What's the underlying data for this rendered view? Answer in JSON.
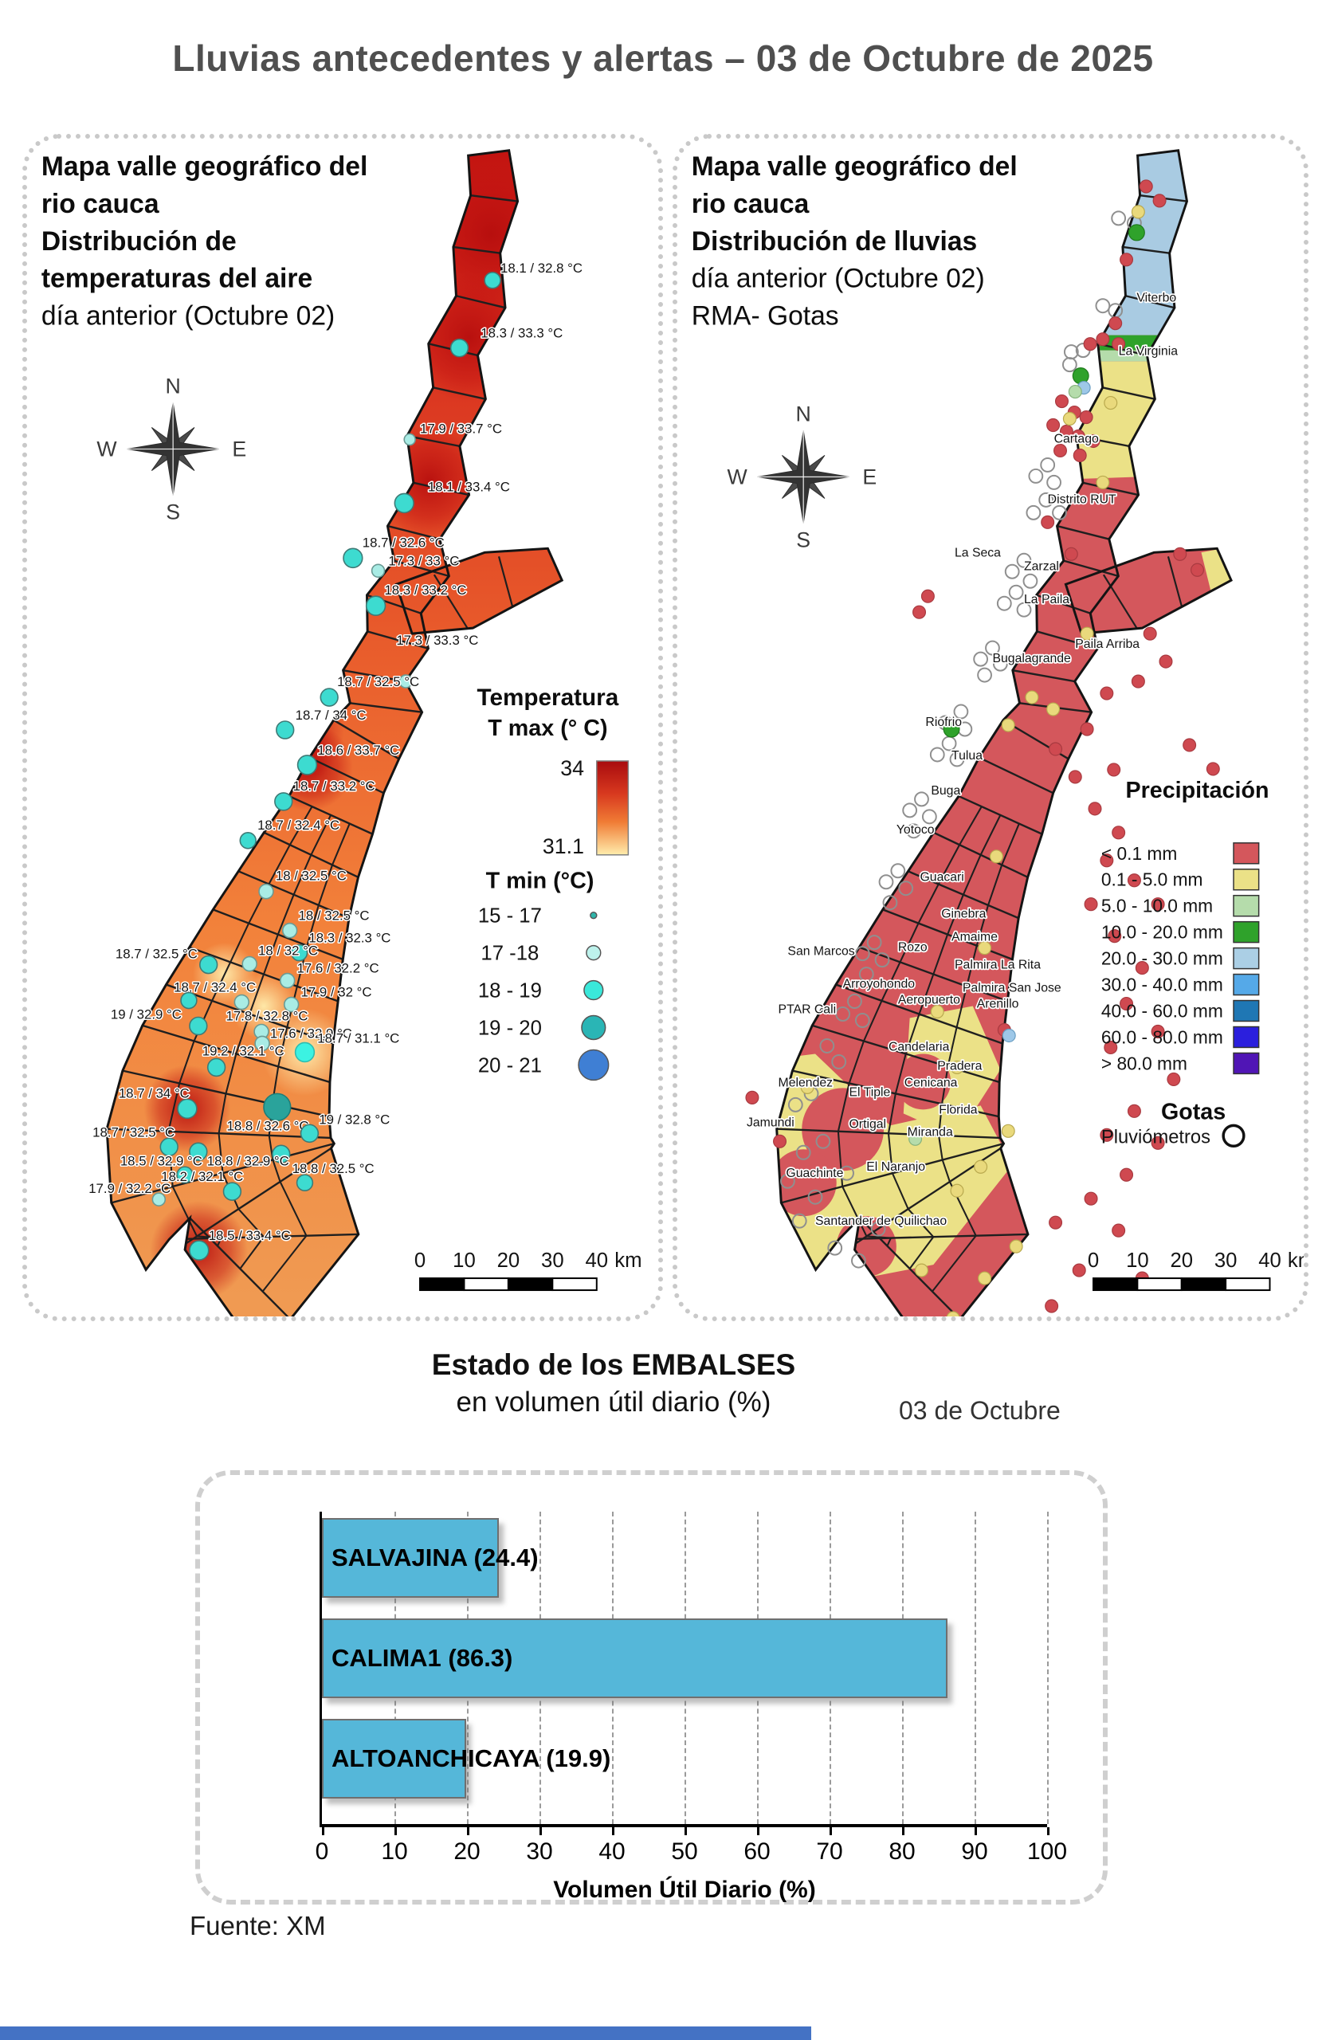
{
  "title": "Lluvias antecedentes y alertas – 03 de Octubre de 2025",
  "source": "Fuente: XM",
  "compass": {
    "north": "N",
    "south": "S",
    "east": "E",
    "west": "W"
  },
  "scalebar": {
    "ticks": [
      "0",
      "10",
      "20",
      "30",
      "40"
    ],
    "unit": "km"
  },
  "colors": {
    "title": "#4f4f4f",
    "rain_base": "#d4575c",
    "rain_yellow": "#ebe187",
    "rain_blue_zone": "#a9cbe2",
    "rain_green": "#2fa22b",
    "rain_lightgreen": "#b5dcab",
    "bottom_bar": "#4472c4"
  },
  "temp_map": {
    "title_lines": [
      "Mapa valle geográfico del",
      "rio cauca",
      "Distribución de",
      "temperaturas del aire",
      "día anterior (Octubre 02)"
    ],
    "legend_title1": "Temperatura",
    "legend_title2": "T max (° C)",
    "tmax_top_label": "34",
    "tmax_bottom_label": "31.1",
    "tmin_title": "T min (°C)",
    "tmin_classes": [
      [
        "15 - 17",
        4,
        "#2fb5aa"
      ],
      [
        "17 -18",
        9,
        "#bdf2ec"
      ],
      [
        "18 - 19",
        12,
        "#3ae8da"
      ],
      [
        "19 - 20",
        15,
        "#2ab5b5"
      ],
      [
        "20 - 21",
        19,
        "#3f7fd4"
      ]
    ],
    "stations": [
      [
        590,
        178,
        10,
        0,
        "18.1 / 32.8 °C",
        600,
        168
      ],
      [
        548,
        263,
        11,
        0,
        "18.3 / 33.3 °C",
        575,
        250
      ],
      [
        485,
        378,
        7,
        1,
        "17.9 / 33.7 °C",
        498,
        370
      ],
      [
        478,
        458,
        12,
        0,
        "18.1 / 33.4 °C",
        508,
        443
      ],
      [
        413,
        527,
        12,
        0,
        "18.7 / 32.6 °C",
        425,
        513
      ],
      [
        445,
        543,
        8,
        1,
        "17.3 / 33 °C",
        458,
        536
      ],
      [
        442,
        587,
        12,
        0,
        "18.3 / 33.2 °C",
        453,
        573
      ],
      [
        480,
        682,
        8,
        1,
        "17.3 / 33.3 °C",
        468,
        636
      ],
      [
        383,
        702,
        11,
        0,
        "18.7 / 32.5 °C",
        393,
        688
      ],
      [
        327,
        743,
        11,
        0,
        "18.7 / 34 °C",
        340,
        730
      ],
      [
        355,
        787,
        12,
        0,
        "18.6 / 33.7 °C",
        368,
        774
      ],
      [
        325,
        833,
        11,
        0,
        "18.7 / 33.2 °C",
        337,
        819
      ],
      [
        280,
        882,
        10,
        0,
        "18.7 / 32.4 °C",
        292,
        868
      ],
      [
        303,
        946,
        9,
        1,
        "18 / 32.5 °C",
        315,
        932
      ],
      [
        333,
        995,
        9,
        1,
        "18 / 32.5 °C",
        344,
        982
      ],
      [
        345,
        1023,
        10,
        0,
        "18.3 / 32.3 °C",
        357,
        1010
      ],
      [
        230,
        1038,
        11,
        0,
        "18.7 / 32.5 °C",
        112,
        1030
      ],
      [
        282,
        1037,
        9,
        1,
        "18 / 32 °C",
        293,
        1026
      ],
      [
        330,
        1058,
        9,
        1,
        "17.6 / 32.2 °C",
        342,
        1048
      ],
      [
        272,
        1085,
        9,
        1,
        "18.7 / 32.4 °C",
        186,
        1072
      ],
      [
        205,
        1083,
        10,
        0,
        "",
        0,
        0
      ],
      [
        335,
        1088,
        9,
        1,
        "17.9 / 32 °C",
        347,
        1078
      ],
      [
        217,
        1115,
        11,
        0,
        "19 / 32.9 °C",
        106,
        1106
      ],
      [
        297,
        1122,
        9,
        1,
        "17.8 / 32.8 °C",
        252,
        1108
      ],
      [
        298,
        1137,
        9,
        1,
        "17.6 / 32.9 °C",
        308,
        1130
      ],
      [
        352,
        1148,
        12,
        3,
        "18.7 / 31.1 °C",
        368,
        1136
      ],
      [
        240,
        1167,
        11,
        0,
        "19.2 / 32.1 °C",
        222,
        1152
      ],
      [
        317,
        1217,
        17,
        2,
        "18.8 / 32.6 °C",
        253,
        1246
      ],
      [
        203,
        1219,
        12,
        0,
        "18.7 / 34 °C",
        116,
        1205
      ],
      [
        180,
        1267,
        11,
        0,
        "18.7 / 32.5 °C",
        83,
        1254
      ],
      [
        217,
        1273,
        11,
        0,
        "",
        0,
        0
      ],
      [
        358,
        1250,
        11,
        0,
        "19 / 32.8 °C",
        370,
        1238
      ],
      [
        200,
        1302,
        10,
        0,
        "18.5 / 32.9 °C",
        118,
        1290
      ],
      [
        322,
        1276,
        11,
        0,
        "18.8 / 32.9 °C",
        228,
        1290
      ],
      [
        352,
        1312,
        10,
        0,
        "18.8 / 32.5 °C",
        336,
        1300
      ],
      [
        260,
        1323,
        11,
        0,
        "18.2 / 32.1 °C",
        170,
        1310
      ],
      [
        167,
        1333,
        8,
        1,
        "17.9 / 32.2 °C",
        78,
        1325
      ],
      [
        218,
        1397,
        12,
        0,
        "18.5 / 33.4 °C",
        230,
        1384
      ]
    ]
  },
  "rain_map": {
    "title_lines": [
      "Mapa valle geográfico del",
      "rio cauca",
      "Distribución de lluvias",
      "día anterior (Octubre 02)",
      "RMA- Gotas"
    ],
    "legend_title": "Precipitación",
    "classes": [
      [
        "< 0.1 mm",
        "#d4575c"
      ],
      [
        "0.1 - 5.0 mm",
        "#ebe187"
      ],
      [
        "5.0 - 10.0 mm",
        "#b5dcab"
      ],
      [
        "10.0 - 20.0 mm",
        "#2fa22b"
      ],
      [
        "20.0 - 30.0 mm",
        "#abcfe5"
      ],
      [
        "30.0 - 40.0 mm",
        "#55a9e8"
      ],
      [
        "40.0 - 60.0 mm",
        "#1f77b4"
      ],
      [
        "60.0 - 80.0 mm",
        "#2b1fdd"
      ],
      [
        "> 80.0 mm",
        "#5015b5"
      ]
    ],
    "gotas_title": "Gotas",
    "gotas_label": "Pluviómetros",
    "places": [
      [
        "Viterbo",
        583,
        205
      ],
      [
        "La Virginia",
        560,
        272
      ],
      [
        "Cartago",
        478,
        382
      ],
      [
        "Distrito RUT",
        470,
        458
      ],
      [
        "La Seca",
        352,
        525
      ],
      [
        "Zarzal",
        440,
        542
      ],
      [
        "La Paila",
        440,
        584
      ],
      [
        "Paila Arriba",
        505,
        640
      ],
      [
        "Bugalagrande",
        400,
        658
      ],
      [
        "Riofrio",
        315,
        738
      ],
      [
        "Tulua",
        348,
        780
      ],
      [
        "Buga",
        322,
        824
      ],
      [
        "Yotoco",
        278,
        873
      ],
      [
        "Guacari",
        308,
        933
      ],
      [
        "Ginebra",
        335,
        979
      ],
      [
        "Amaime",
        348,
        1008
      ],
      [
        "Rozo",
        280,
        1021
      ],
      [
        "San Marcos",
        140,
        1026
      ],
      [
        "Palmira La Rita",
        352,
        1043
      ],
      [
        "Arroyohondo",
        210,
        1067
      ],
      [
        "Palmira San Jose",
        362,
        1072
      ],
      [
        "Aeropuerto",
        280,
        1087
      ],
      [
        "Arenillo",
        380,
        1092
      ],
      [
        "PTAR Cali",
        128,
        1099
      ],
      [
        "Candelaria",
        268,
        1146
      ],
      [
        "Pradera",
        330,
        1170
      ],
      [
        "Melendez",
        128,
        1191
      ],
      [
        "Cenicana",
        288,
        1191
      ],
      [
        "El Tiple",
        218,
        1203
      ],
      [
        "Florida",
        332,
        1225
      ],
      [
        "Jamundi",
        88,
        1241
      ],
      [
        "Ortigal",
        218,
        1243
      ],
      [
        "Miranda",
        292,
        1253
      ],
      [
        "Guachinte",
        138,
        1305
      ],
      [
        "El Naranjo",
        240,
        1297
      ],
      [
        "Santander de Quilichao",
        175,
        1365
      ]
    ],
    "dots": {
      "open": [
        [
          560,
          100
        ],
        [
          580,
          106
        ],
        [
          540,
          210
        ],
        [
          556,
          216
        ],
        [
          500,
          268
        ],
        [
          515,
          266
        ],
        [
          498,
          284
        ],
        [
          470,
          410
        ],
        [
          455,
          424
        ],
        [
          478,
          432
        ],
        [
          468,
          454
        ],
        [
          452,
          470
        ],
        [
          485,
          470
        ],
        [
          440,
          530
        ],
        [
          425,
          544
        ],
        [
          448,
          556
        ],
        [
          430,
          570
        ],
        [
          415,
          584
        ],
        [
          440,
          592
        ],
        [
          400,
          640
        ],
        [
          385,
          654
        ],
        [
          410,
          660
        ],
        [
          390,
          674
        ],
        [
          360,
          720
        ],
        [
          340,
          734
        ],
        [
          365,
          742
        ],
        [
          345,
          760
        ],
        [
          330,
          774
        ],
        [
          355,
          780
        ],
        [
          310,
          830
        ],
        [
          295,
          844
        ],
        [
          320,
          852
        ],
        [
          300,
          870
        ],
        [
          280,
          920
        ],
        [
          265,
          934
        ],
        [
          290,
          942
        ],
        [
          270,
          960
        ],
        [
          250,
          1010
        ],
        [
          235,
          1024
        ],
        [
          260,
          1032
        ],
        [
          240,
          1050
        ],
        [
          225,
          1084
        ],
        [
          210,
          1100
        ],
        [
          235,
          1108
        ],
        [
          190,
          1140
        ],
        [
          205,
          1160
        ],
        [
          170,
          1200
        ],
        [
          150,
          1214
        ],
        [
          185,
          1260
        ],
        [
          160,
          1274
        ],
        [
          140,
          1310
        ],
        [
          175,
          1330
        ],
        [
          155,
          1360
        ],
        [
          200,
          1394
        ],
        [
          230,
          1410
        ],
        [
          255,
          1370
        ],
        [
          215,
          1300
        ]
      ],
      "red": [
        [
          595,
          60
        ],
        [
          612,
          78
        ],
        [
          570,
          152
        ],
        [
          556,
          232
        ],
        [
          540,
          252
        ],
        [
          524,
          258
        ],
        [
          560,
          258
        ],
        [
          488,
          330
        ],
        [
          504,
          344
        ],
        [
          519,
          350
        ],
        [
          477,
          360
        ],
        [
          494,
          368
        ],
        [
          509,
          374
        ],
        [
          528,
          380
        ],
        [
          486,
          392
        ],
        [
          511,
          398
        ],
        [
          470,
          482
        ],
        [
          500,
          522
        ],
        [
          638,
          522
        ],
        [
          660,
          542
        ],
        [
          318,
          575
        ],
        [
          307,
          595
        ],
        [
          600,
          622
        ],
        [
          620,
          657
        ],
        [
          585,
          682
        ],
        [
          545,
          697
        ],
        [
          520,
          742
        ],
        [
          650,
          762
        ],
        [
          680,
          792
        ],
        [
          480,
          767
        ],
        [
          505,
          802
        ],
        [
          530,
          842
        ],
        [
          560,
          872
        ],
        [
          545,
          907
        ],
        [
          580,
          932
        ],
        [
          525,
          962
        ],
        [
          610,
          962
        ],
        [
          555,
          1002
        ],
        [
          590,
          1042
        ],
        [
          570,
          1087
        ],
        [
          610,
          1122
        ],
        [
          550,
          1142
        ],
        [
          630,
          1182
        ],
        [
          580,
          1222
        ],
        [
          545,
          1252
        ],
        [
          610,
          1262
        ],
        [
          570,
          1302
        ],
        [
          525,
          1332
        ],
        [
          480,
          1362
        ],
        [
          560,
          1372
        ],
        [
          510,
          1422
        ],
        [
          590,
          1432
        ],
        [
          475,
          1467
        ],
        [
          440,
          1492
        ],
        [
          520,
          1502
        ],
        [
          460,
          1532
        ],
        [
          420,
          1562
        ],
        [
          380,
          1532
        ],
        [
          350,
          1502
        ],
        [
          554,
          793
        ],
        [
          415,
          1120
        ],
        [
          130,
          1260
        ],
        [
          95,
          1205
        ]
      ],
      "yellow": [
        [
          585,
          92
        ],
        [
          550,
          332
        ],
        [
          498,
          352
        ],
        [
          540,
          432
        ],
        [
          520,
          622
        ],
        [
          450,
          702
        ],
        [
          420,
          737
        ],
        [
          477,
          717
        ],
        [
          405,
          902
        ],
        [
          390,
          1017
        ],
        [
          330,
          1097
        ],
        [
          165,
          1192
        ],
        [
          355,
          1167
        ],
        [
          420,
          1247
        ],
        [
          385,
          1292
        ],
        [
          355,
          1322
        ],
        [
          310,
          1422
        ],
        [
          390,
          1432
        ],
        [
          350,
          1482
        ],
        [
          300,
          1512
        ],
        [
          430,
          1392
        ]
      ],
      "green": [
        [
          583,
          118
        ],
        [
          512,
          298
        ],
        [
          348,
          742
        ]
      ],
      "blue": [
        [
          516,
          313
        ],
        [
          421,
          1127
        ]
      ],
      "lightgreen": [
        [
          505,
          318
        ],
        [
          302,
          1257
        ]
      ]
    }
  },
  "embalses": {
    "title": "Estado de los EMBALSES",
    "subtitle": "en volumen útil diario (%)",
    "date_label": "03 de Octubre",
    "xlabel": "Volumen Útil Diario (%)"
  },
  "chart_data": {
    "type": "bar",
    "orientation": "horizontal",
    "title": "Estado de los EMBALSES",
    "subtitle": "en volumen útil diario (%)",
    "date_label": "03 de Octubre",
    "categories": [
      "SALVAJINA",
      "CALIMA1",
      "ALTOANCHICAYA"
    ],
    "values": [
      24.4,
      86.3,
      19.9
    ],
    "bar_labels": [
      "SALVAJINA (24.4)",
      "CALIMA1 (86.3)",
      "ALTOANCHICAYA (19.9)"
    ],
    "xlabel": "Volumen Útil Diario (%)",
    "xlim": [
      0,
      100
    ],
    "xticks": [
      0,
      10,
      20,
      30,
      40,
      50,
      60,
      70,
      80,
      90,
      100
    ],
    "grid": "dashed-vertical",
    "bar_color": "#55b7d9",
    "legend": null
  }
}
